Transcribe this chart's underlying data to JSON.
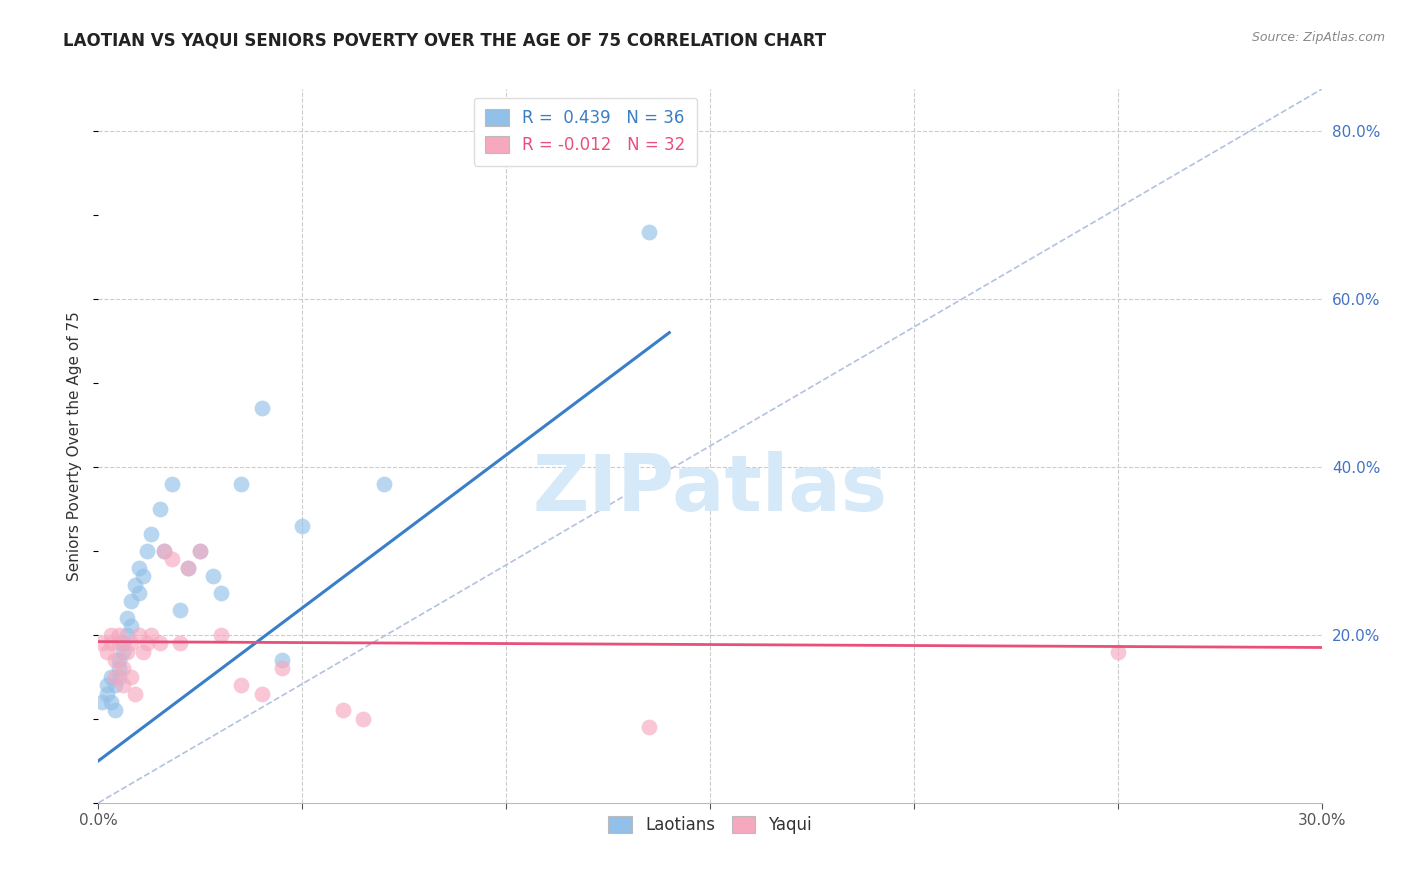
{
  "title": "LAOTIAN VS YAQUI SENIORS POVERTY OVER THE AGE OF 75 CORRELATION CHART",
  "source": "Source: ZipAtlas.com",
  "ylabel": "Seniors Poverty Over the Age of 75",
  "xlim": [
    0.0,
    0.3
  ],
  "ylim": [
    0.0,
    0.85
  ],
  "blue_color": "#92C0E8",
  "pink_color": "#F5A8BE",
  "blue_line_color": "#3A7EC8",
  "pink_line_color": "#E8507A",
  "diag_color": "#AABBDD",
  "watermark_color": "#D6E9F8",
  "laotian_x": [
    0.001,
    0.002,
    0.002,
    0.003,
    0.003,
    0.004,
    0.004,
    0.005,
    0.005,
    0.005,
    0.006,
    0.006,
    0.007,
    0.007,
    0.008,
    0.008,
    0.009,
    0.01,
    0.01,
    0.011,
    0.012,
    0.013,
    0.015,
    0.016,
    0.018,
    0.02,
    0.022,
    0.025,
    0.028,
    0.03,
    0.035,
    0.04,
    0.045,
    0.05,
    0.07,
    0.135
  ],
  "laotian_y": [
    0.12,
    0.13,
    0.14,
    0.15,
    0.12,
    0.11,
    0.14,
    0.15,
    0.17,
    0.16,
    0.18,
    0.19,
    0.2,
    0.22,
    0.21,
    0.24,
    0.26,
    0.25,
    0.28,
    0.27,
    0.3,
    0.32,
    0.35,
    0.3,
    0.38,
    0.23,
    0.28,
    0.3,
    0.27,
    0.25,
    0.38,
    0.47,
    0.17,
    0.33,
    0.38,
    0.68
  ],
  "yaqui_x": [
    0.001,
    0.002,
    0.003,
    0.003,
    0.004,
    0.004,
    0.005,
    0.005,
    0.006,
    0.006,
    0.007,
    0.008,
    0.008,
    0.009,
    0.01,
    0.011,
    0.012,
    0.013,
    0.015,
    0.016,
    0.018,
    0.02,
    0.022,
    0.025,
    0.03,
    0.035,
    0.04,
    0.045,
    0.06,
    0.065,
    0.135,
    0.25
  ],
  "yaqui_y": [
    0.19,
    0.18,
    0.2,
    0.19,
    0.17,
    0.15,
    0.19,
    0.2,
    0.14,
    0.16,
    0.18,
    0.15,
    0.19,
    0.13,
    0.2,
    0.18,
    0.19,
    0.2,
    0.19,
    0.3,
    0.29,
    0.19,
    0.28,
    0.3,
    0.2,
    0.14,
    0.13,
    0.16,
    0.11,
    0.1,
    0.09,
    0.18
  ],
  "blue_line_x": [
    0.0,
    0.14
  ],
  "blue_line_y": [
    0.05,
    0.56
  ],
  "pink_line_x": [
    0.0,
    0.3
  ],
  "pink_line_y": [
    0.192,
    0.185
  ]
}
